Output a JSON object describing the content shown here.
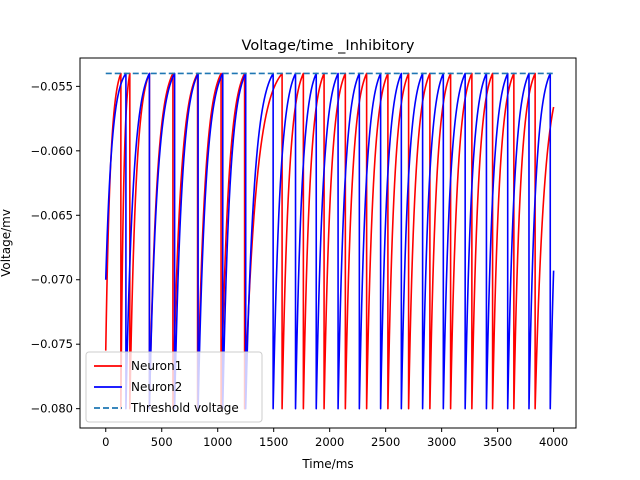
{
  "chart_data": {
    "type": "line",
    "title": "Voltage/time  _Inhibitory",
    "xlabel": "Time/ms",
    "ylabel": "Voltage/mv",
    "xlim": [
      -230,
      4200
    ],
    "ylim": [
      -0.0815,
      -0.0528
    ],
    "xticks": [
      0,
      500,
      1000,
      1500,
      2000,
      2500,
      3000,
      3500,
      4000
    ],
    "yticks": [
      -0.055,
      -0.06,
      -0.065,
      -0.07,
      -0.075,
      -0.08
    ],
    "ytick_labels": [
      "−0.055",
      "−0.060",
      "−0.065",
      "−0.070",
      "−0.075",
      "−0.080"
    ],
    "grid": false,
    "legend_position": "lower-left",
    "threshold": -0.054,
    "reset_voltage": -0.08,
    "series": [
      {
        "name": "Neuron1",
        "color": "#ff0000",
        "style": "solid",
        "start": {
          "x": 0,
          "y": -0.0755
        },
        "spike_times": [
          135,
          215,
          390,
          600,
          820,
          1030,
          1240,
          1575,
          1765,
          1950,
          2140,
          2330,
          2520,
          2705,
          2895,
          3080,
          3270,
          3455,
          3645,
          3835
        ],
        "end": {
          "x": 4000,
          "y": -0.0566
        }
      },
      {
        "name": "Neuron2",
        "color": "#0000ff",
        "style": "solid",
        "start": {
          "x": 0,
          "y": -0.07
        },
        "spike_times": [
          180,
          390,
          615,
          825,
          1045,
          1250,
          1495,
          1695,
          1880,
          2075,
          2265,
          2455,
          2640,
          2830,
          3015,
          3210,
          3400,
          3590,
          3780,
          3970
        ],
        "end": {
          "x": 4000,
          "y": -0.0693
        }
      },
      {
        "name": "Threshold voltage",
        "color": "#1f77b4",
        "style": "dashed",
        "x": [
          0,
          4000
        ],
        "y": [
          -0.054,
          -0.054
        ]
      }
    ]
  }
}
